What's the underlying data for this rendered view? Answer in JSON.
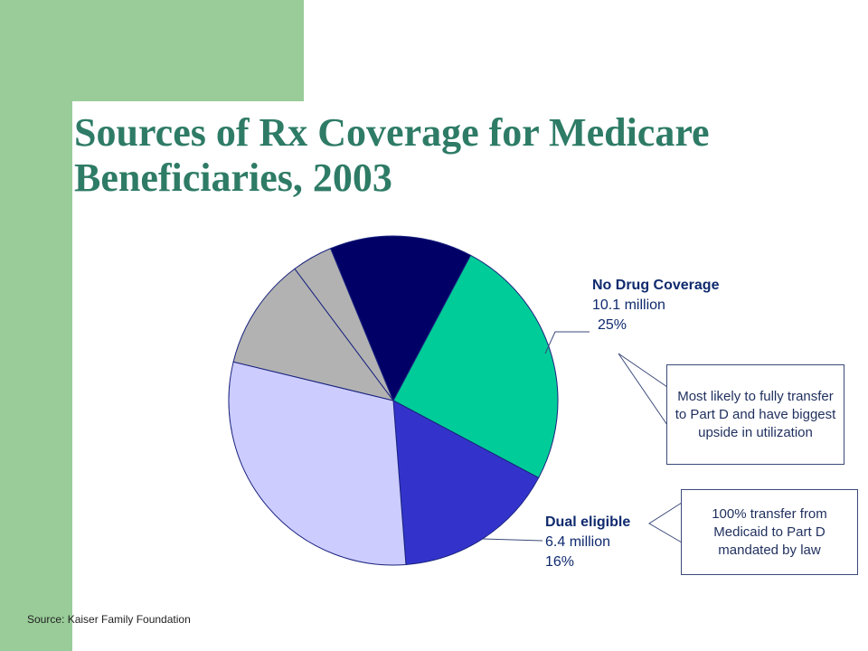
{
  "title": "Sources of Rx Coverage for Medicare Beneficiaries, 2003",
  "source": "Source: Kaiser Family Foundation",
  "colors": {
    "green_band": "#99cc99",
    "title": "#2e7b66"
  },
  "chart_data": {
    "type": "pie",
    "title": "Sources of Rx Coverage for Medicare Beneficiaries, 2003",
    "slices": [
      {
        "name": "No Drug Coverage",
        "value": 25,
        "amount": "10.1 million",
        "percent": "25%",
        "color": "#00cc99",
        "labeled": true
      },
      {
        "name": "Dual eligible",
        "value": 16,
        "amount": "6.4 million",
        "percent": "16%",
        "color": "#3333cc",
        "labeled": true
      },
      {
        "name": "",
        "value": 30,
        "color": "#ccccff",
        "labeled": false
      },
      {
        "name": "",
        "value": 11,
        "color": "#b2b2b2",
        "labeled": false
      },
      {
        "name": "",
        "value": 4,
        "color": "#b2b2b2",
        "labeled": false
      },
      {
        "name": "",
        "value": 14,
        "color": "#000066",
        "labeled": false
      }
    ]
  },
  "labels": {
    "no_drug": {
      "name": "No Drug Coverage",
      "amount": "10.1 million",
      "percent": "25%"
    },
    "dual": {
      "name": "Dual eligible",
      "amount": "6.4 million",
      "percent": "16%"
    }
  },
  "callouts": {
    "no_drug": "Most likely to fully transfer to Part D and have biggest upside in utilization",
    "dual": "100% transfer from Medicaid to Part D mandated by law"
  }
}
